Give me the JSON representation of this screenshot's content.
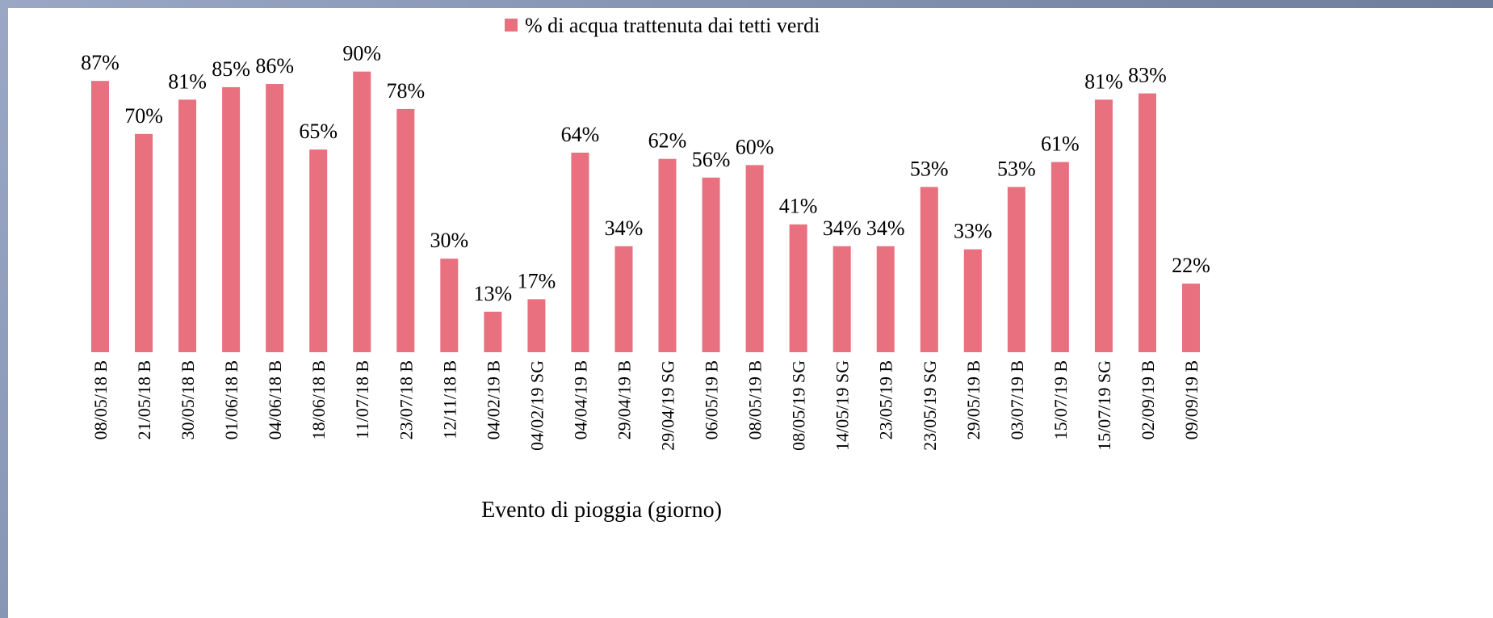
{
  "chart_data": {
    "type": "bar",
    "legend": "% di acqua trattenuta dai tetti verdi",
    "x_label": "Evento di pioggia (giorno)",
    "color": "#e8707f",
    "categories": [
      "08/05/18 B",
      "21/05/18 B",
      "30/05/18 B",
      "01/06/18 B",
      "04/06/18 B",
      "18/06/18 B",
      "11/07/18 B",
      "23/07/18 B",
      "12/11/18 B",
      "04/02/19 B",
      "04/02/19 SG",
      "04/04/19 B",
      "29/04/19 B",
      "29/04/19 SG",
      "06/05/19 B",
      "08/05/19 B",
      "08/05/19 SG",
      "14/05/19 SG",
      "23/05/19 B",
      "23/05/19 SG",
      "29/05/19 B",
      "03/07/19 B",
      "15/07/19 B",
      "15/07/19 SG",
      "02/09/19 B",
      "09/09/19 B"
    ],
    "values": [
      87,
      70,
      81,
      85,
      86,
      65,
      90,
      78,
      30,
      13,
      17,
      64,
      34,
      62,
      56,
      60,
      41,
      34,
      34,
      53,
      33,
      53,
      61,
      81,
      83,
      22
    ],
    "value_labels": [
      "87%",
      "70%",
      "81%",
      "85%",
      "86%",
      "65%",
      "90%",
      "78%",
      "30%",
      "13%",
      "17%",
      "64%",
      "34%",
      "62%",
      "56%",
      "60%",
      "41%",
      "34%",
      "34%",
      "53%",
      "33%",
      "53%",
      "61%",
      "81%",
      "83%",
      "22%"
    ]
  }
}
